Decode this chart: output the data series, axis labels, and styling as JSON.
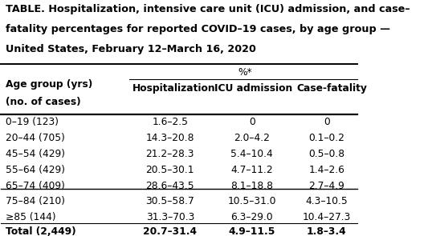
{
  "title_line1": "TABLE. Hospitalization, intensive care unit (ICU) admission, and case–",
  "title_line2": "fatality percentages for reported COVID–19 cases, by age group —",
  "title_line3": "United States, February 12–March 16, 2020",
  "col_header_top": "%*",
  "col_header_left1": "Age group (yrs)",
  "col_header_left2": "(no. of cases)",
  "col_header_hosp": "Hospitalization",
  "col_header_icu": "ICU admission",
  "col_header_fatal": "Case-fatality",
  "rows": [
    {
      "age": "0–19 (123)",
      "hosp": "1.6–2.5",
      "icu": "0",
      "fatal": "0"
    },
    {
      "age": "20–44 (705)",
      "hosp": "14.3–20.8",
      "icu": "2.0–4.2",
      "fatal": "0.1–0.2"
    },
    {
      "age": "45–54 (429)",
      "hosp": "21.2–28.3",
      "icu": "5.4–10.4",
      "fatal": "0.5–0.8"
    },
    {
      "age": "55–64 (429)",
      "hosp": "20.5–30.1",
      "icu": "4.7–11.2",
      "fatal": "1.4–2.6"
    },
    {
      "age": "65–74 (409)",
      "hosp": "28.6–43.5",
      "icu": "8.1–18.8",
      "fatal": "2.7–4.9"
    },
    {
      "age": "75–84 (210)",
      "hosp": "30.5–58.7",
      "icu": "10.5–31.0",
      "fatal": "4.3–10.5"
    },
    {
      "age": "≥85 (144)",
      "hosp": "31.3–70.3",
      "icu": "6.3–29.0",
      "fatal": "10.4–27.3"
    }
  ],
  "total_age": "Total (2,449)",
  "total_hosp": "20.7–31.4",
  "total_icu": "4.9–11.5",
  "total_fatal": "1.8–3.4",
  "bg_color": "#ffffff",
  "text_color": "#000000",
  "title_fontsize": 9.2,
  "header_fontsize": 8.8,
  "data_fontsize": 8.8
}
